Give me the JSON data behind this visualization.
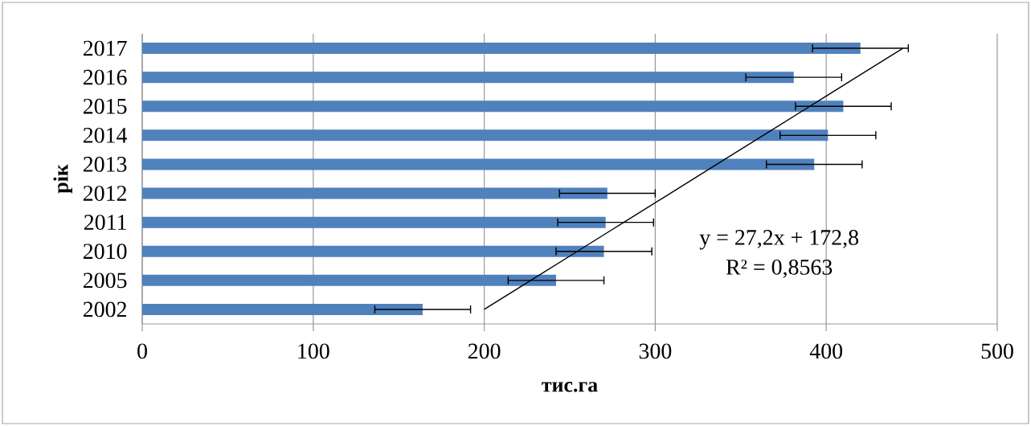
{
  "chart_data": {
    "type": "bar",
    "orientation": "horizontal",
    "xlabel": "тис.га",
    "ylabel": "рік",
    "categories": [
      "2017",
      "2016",
      "2015",
      "2014",
      "2013",
      "2012",
      "2011",
      "2010",
      "2005",
      "2002"
    ],
    "series": [
      {
        "color": "#4f81bd",
        "values": [
          420,
          381,
          410,
          401,
          393,
          272,
          271,
          270,
          242,
          164
        ],
        "errors": [
          28,
          28,
          28,
          28,
          28,
          28,
          28,
          28,
          28,
          28
        ]
      },
      {
        "type": "line",
        "color": "#000000",
        "values": [
          444.8,
          417.6,
          390.4,
          363.2,
          336,
          308.8,
          281.6,
          254.4,
          227.2,
          200
        ]
      }
    ],
    "xlim": [
      0,
      500
    ],
    "xticks": [
      0,
      100,
      200,
      300,
      400,
      500
    ],
    "grid": "x",
    "annotations": [
      "y = 27,2x + 172,8",
      "R² = 0,8563"
    ]
  }
}
